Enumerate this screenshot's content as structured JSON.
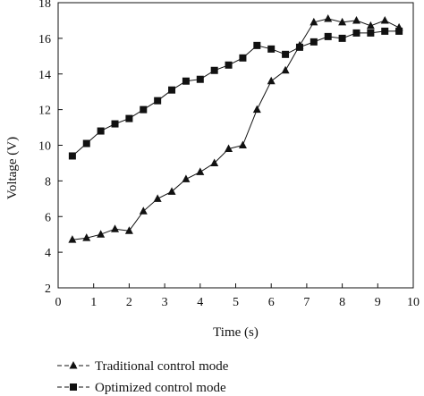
{
  "chart_data": {
    "type": "line",
    "xlabel": "Time (s)",
    "ylabel": "Voltage (V)",
    "xlim": [
      0,
      10
    ],
    "ylim": [
      2,
      18
    ],
    "xticks": [
      0,
      1,
      2,
      3,
      4,
      5,
      6,
      7,
      8,
      9,
      10
    ],
    "yticks": [
      2,
      4,
      6,
      8,
      10,
      12,
      14,
      16,
      18
    ],
    "grid": false,
    "legend_position": "bottom",
    "series": [
      {
        "name": "Traditional control mode",
        "marker": "triangle",
        "color": "#111111",
        "x": [
          0.4,
          0.8,
          1.2,
          1.6,
          2.0,
          2.4,
          2.8,
          3.2,
          3.6,
          4.0,
          4.4,
          4.8,
          5.2,
          5.6,
          6.0,
          6.4,
          6.8,
          7.2,
          7.6,
          8.0,
          8.4,
          8.8,
          9.2,
          9.6
        ],
        "values": [
          4.7,
          4.8,
          5.0,
          5.3,
          5.2,
          6.3,
          7.0,
          7.4,
          8.1,
          8.5,
          9.0,
          9.8,
          10.0,
          12.0,
          13.6,
          14.2,
          15.6,
          16.9,
          17.1,
          16.9,
          17.0,
          16.7,
          17.0,
          16.6
        ]
      },
      {
        "name": "Optimized control mode",
        "marker": "square",
        "color": "#111111",
        "x": [
          0.4,
          0.8,
          1.2,
          1.6,
          2.0,
          2.4,
          2.8,
          3.2,
          3.6,
          4.0,
          4.4,
          4.8,
          5.2,
          5.6,
          6.0,
          6.4,
          6.8,
          7.2,
          7.6,
          8.0,
          8.4,
          8.8,
          9.2,
          9.6
        ],
        "values": [
          9.4,
          10.1,
          10.8,
          11.2,
          11.5,
          12.0,
          12.5,
          13.1,
          13.6,
          13.7,
          14.2,
          14.5,
          14.9,
          15.6,
          15.4,
          15.1,
          15.5,
          15.8,
          16.1,
          16.0,
          16.3,
          16.3,
          16.4,
          16.4
        ]
      }
    ]
  }
}
